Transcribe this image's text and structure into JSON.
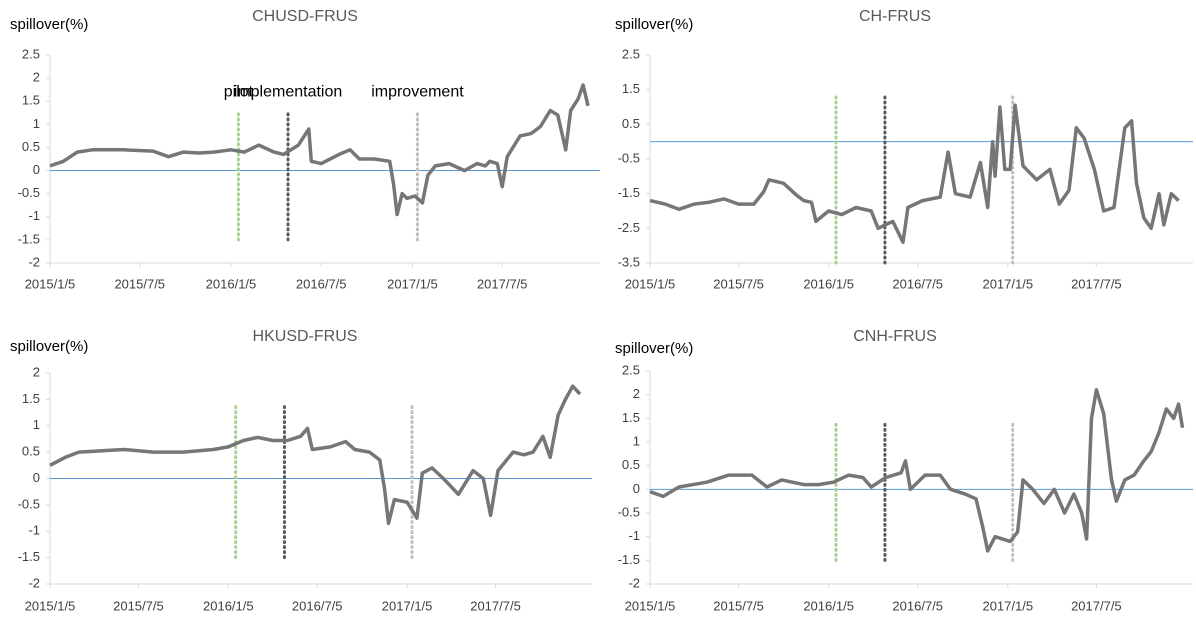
{
  "chart_data": [
    {
      "type": "line",
      "title": "CHUSD-FRUS",
      "y_label": "spillover(%)",
      "xlim": [
        "2015/1/5",
        "2017/12/29"
      ],
      "xticks": [
        "2015/1/5",
        "2015/7/5",
        "2016/1/5",
        "2016/7/5",
        "2017/1/5",
        "2017/7/5"
      ],
      "ylim": [
        -2,
        2.5
      ],
      "yticks": [
        -2,
        -1.5,
        -1,
        -0.5,
        0,
        0.5,
        1,
        1.5,
        2,
        2.5
      ],
      "baseline": 0,
      "baseline_color": "#5b9bd5",
      "events": [
        {
          "label": "pilot",
          "x": "2016/1/20",
          "color": "#a9d18e"
        },
        {
          "label": "implementation",
          "x": "2016/4/29",
          "color": "#595959"
        },
        {
          "label": "improvement",
          "x": "2017/1/15",
          "color": "#bfbfbf"
        }
      ],
      "event_ylim": [
        -1.5,
        1.3
      ],
      "x": [
        "2015/1/5",
        "2015/2/1",
        "2015/3/1",
        "2015/4/1",
        "2015/6/1",
        "2015/8/1",
        "2015/9/1",
        "2015/10/1",
        "2015/11/1",
        "2015/12/1",
        "2016/1/5",
        "2016/2/1",
        "2016/3/1",
        "2016/4/1",
        "2016/4/20",
        "2016/5/20",
        "2016/6/10",
        "2016/6/15",
        "2016/7/5",
        "2016/8/10",
        "2016/9/1",
        "2016/9/20",
        "2016/10/20",
        "2016/11/20",
        "2016/11/28",
        "2016/12/5",
        "2016/12/15",
        "2016/12/25",
        "2017/1/10",
        "2017/1/25",
        "2017/2/5",
        "2017/2/20",
        "2017/3/20",
        "2017/4/20",
        "2017/5/15",
        "2017/6/1",
        "2017/6/10",
        "2017/6/25",
        "2017/7/5",
        "2017/7/15",
        "2017/8/10",
        "2017/9/1",
        "2017/9/20",
        "2017/10/10",
        "2017/10/25",
        "2017/11/10",
        "2017/11/20",
        "2017/12/5",
        "2017/12/15",
        "2017/12/25"
      ],
      "series": [
        {
          "name": "CHUSD-FRUS",
          "color": "#767676",
          "values": [
            0.1,
            0.2,
            0.4,
            0.45,
            0.45,
            0.42,
            0.3,
            0.4,
            0.38,
            0.4,
            0.45,
            0.4,
            0.55,
            0.4,
            0.35,
            0.55,
            0.9,
            0.2,
            0.15,
            0.35,
            0.45,
            0.25,
            0.25,
            0.2,
            -0.3,
            -0.95,
            -0.5,
            -0.6,
            -0.55,
            -0.7,
            -0.1,
            0.1,
            0.15,
            0,
            0.15,
            0.1,
            0.2,
            0.15,
            -0.35,
            0.3,
            0.75,
            0.8,
            0.95,
            1.3,
            1.2,
            0.45,
            1.3,
            1.55,
            1.85,
            1.4
          ]
        }
      ]
    },
    {
      "type": "line",
      "title": "CH-FRUS",
      "y_label": "spillover(%)",
      "xlim": [
        "2015/1/5",
        "2017/12/29"
      ],
      "xticks": [
        "2015/1/5",
        "2015/7/5",
        "2016/1/5",
        "2016/7/5",
        "2017/1/5",
        "2017/7/5"
      ],
      "ylim": [
        -3.5,
        2.5
      ],
      "yticks": [
        -3.5,
        -2.5,
        -1.5,
        -0.5,
        0.5,
        1.5,
        2.5
      ],
      "baseline": 0,
      "baseline_color": "#5b9bd5",
      "events": [
        {
          "x": "2016/1/20",
          "color": "#a9d18e"
        },
        {
          "x": "2016/4/29",
          "color": "#595959"
        },
        {
          "x": "2017/1/15",
          "color": "#bfbfbf"
        }
      ],
      "event_ylim": [
        -3.5,
        1.3
      ],
      "x": [
        "2015/1/5",
        "2015/2/5",
        "2015/3/5",
        "2015/4/5",
        "2015/5/5",
        "2015/6/5",
        "2015/7/5",
        "2015/8/5",
        "2015/8/25",
        "2015/9/5",
        "2015/10/5",
        "2015/11/1",
        "2015/11/15",
        "2015/12/1",
        "2015/12/10",
        "2016/1/5",
        "2016/2/1",
        "2016/3/1",
        "2016/4/1",
        "2016/4/15",
        "2016/5/15",
        "2016/6/5",
        "2016/6/15",
        "2016/7/15",
        "2016/8/20",
        "2016/9/5",
        "2016/9/20",
        "2016/10/20",
        "2016/11/10",
        "2016/11/25",
        "2016/12/5",
        "2016/12/10",
        "2016/12/20",
        "2016/12/30",
        "2017/1/10",
        "2017/1/20",
        "2017/2/5",
        "2017/3/5",
        "2017/4/1",
        "2017/4/20",
        "2017/5/10",
        "2017/5/25",
        "2017/6/10",
        "2017/7/1",
        "2017/7/20",
        "2017/8/10",
        "2017/9/1",
        "2017/9/15",
        "2017/9/25",
        "2017/10/10",
        "2017/10/25",
        "2017/11/10",
        "2017/11/20",
        "2017/12/5",
        "2017/12/20"
      ],
      "series": [
        {
          "name": "CH-FRUS",
          "color": "#767676",
          "values": [
            -1.7,
            -1.8,
            -1.95,
            -1.8,
            -1.75,
            -1.65,
            -1.8,
            -1.8,
            -1.45,
            -1.1,
            -1.2,
            -1.55,
            -1.7,
            -1.75,
            -2.3,
            -2,
            -2.1,
            -1.9,
            -2,
            -2.5,
            -2.3,
            -2.9,
            -1.9,
            -1.7,
            -1.6,
            -0.3,
            -1.5,
            -1.6,
            -0.6,
            -1.9,
            0,
            -1,
            1,
            -0.8,
            -0.8,
            1.05,
            -0.7,
            -1.1,
            -0.8,
            -1.8,
            -1.4,
            0.4,
            0.1,
            -0.8,
            -2,
            -1.9,
            0.4,
            0.6,
            -1.2,
            -2.2,
            -2.5,
            -1.5,
            -2.4,
            -1.5,
            -1.7
          ]
        }
      ]
    },
    {
      "type": "line",
      "title": "HKUSD-FRUS",
      "y_label": "spillover(%)",
      "xlim": [
        "2015/1/5",
        "2017/12/29"
      ],
      "xticks": [
        "2015/1/5",
        "2015/7/5",
        "2016/1/5",
        "2016/7/5",
        "2017/1/5",
        "2017/7/5"
      ],
      "ylim": [
        -2,
        2
      ],
      "yticks": [
        -2,
        -1.5,
        -1,
        -0.5,
        0,
        0.5,
        1,
        1.5,
        2
      ],
      "baseline": 0,
      "baseline_color": "#5b9bd5",
      "events": [
        {
          "x": "2016/1/20",
          "color": "#a9d18e"
        },
        {
          "x": "2016/4/29",
          "color": "#595959"
        },
        {
          "x": "2017/1/15",
          "color": "#bfbfbf"
        }
      ],
      "event_ylim": [
        -1.5,
        1.4
      ],
      "x": [
        "2015/1/5",
        "2015/2/5",
        "2015/3/5",
        "2015/6/5",
        "2015/8/5",
        "2015/10/5",
        "2015/12/5",
        "2016/1/5",
        "2016/2/5",
        "2016/3/5",
        "2016/4/5",
        "2016/5/5",
        "2016/6/1",
        "2016/6/15",
        "2016/6/25",
        "2016/8/1",
        "2016/9/1",
        "2016/9/20",
        "2016/10/20",
        "2016/11/10",
        "2016/11/20",
        "2016/11/28",
        "2016/12/10",
        "2017/1/5",
        "2017/1/25",
        "2017/2/5",
        "2017/2/25",
        "2017/3/20",
        "2017/4/20",
        "2017/5/20",
        "2017/6/10",
        "2017/6/25",
        "2017/7/10",
        "2017/8/10",
        "2017/9/1",
        "2017/9/20",
        "2017/10/10",
        "2017/10/25",
        "2017/11/10",
        "2017/11/25",
        "2017/12/10",
        "2017/12/25"
      ],
      "series": [
        {
          "name": "HKUSD-FRUS",
          "color": "#767676",
          "values": [
            0.25,
            0.4,
            0.5,
            0.55,
            0.5,
            0.5,
            0.55,
            0.6,
            0.72,
            0.78,
            0.72,
            0.72,
            0.8,
            0.95,
            0.55,
            0.6,
            0.7,
            0.55,
            0.5,
            0.35,
            -0.2,
            -0.85,
            -0.4,
            -0.45,
            -0.75,
            0.1,
            0.2,
            0,
            -0.3,
            0.15,
            0,
            -0.7,
            0.15,
            0.5,
            0.45,
            0.5,
            0.8,
            0.4,
            1.2,
            1.5,
            1.75,
            1.6
          ]
        }
      ]
    },
    {
      "type": "line",
      "title": "CNH-FRUS",
      "y_label": "spillover(%)",
      "xlim": [
        "2015/1/5",
        "2017/12/29"
      ],
      "xticks": [
        "2015/1/5",
        "2015/7/5",
        "2016/1/5",
        "2016/7/5",
        "2017/1/5",
        "2017/7/5"
      ],
      "ylim": [
        -2,
        2.5
      ],
      "yticks": [
        -2,
        -1.5,
        -1,
        -0.5,
        0,
        0.5,
        1,
        1.5,
        2,
        2.5
      ],
      "baseline": 0,
      "baseline_color": "#5b9bd5",
      "events": [
        {
          "x": "2016/1/20",
          "color": "#a9d18e"
        },
        {
          "x": "2016/4/29",
          "color": "#595959"
        },
        {
          "x": "2017/1/15",
          "color": "#bfbfbf"
        }
      ],
      "event_ylim": [
        -1.5,
        1.4
      ],
      "x": [
        "2015/1/5",
        "2015/2/1",
        "2015/3/5",
        "2015/5/1",
        "2015/6/15",
        "2015/8/1",
        "2015/9/1",
        "2015/10/1",
        "2015/11/15",
        "2015/12/15",
        "2016/1/15",
        "2016/2/15",
        "2016/3/15",
        "2016/4/1",
        "2016/5/1",
        "2016/6/1",
        "2016/6/10",
        "2016/6/20",
        "2016/7/20",
        "2016/8/20",
        "2016/9/10",
        "2016/10/10",
        "2016/11/1",
        "2016/11/15",
        "2016/11/25",
        "2016/12/10",
        "2017/1/10",
        "2017/1/25",
        "2017/2/5",
        "2017/2/25",
        "2017/3/20",
        "2017/4/10",
        "2017/5/1",
        "2017/5/20",
        "2017/6/5",
        "2017/6/15",
        "2017/6/25",
        "2017/7/5",
        "2017/7/20",
        "2017/8/5",
        "2017/8/15",
        "2017/9/1",
        "2017/9/20",
        "2017/10/10",
        "2017/10/25",
        "2017/11/10",
        "2017/11/25",
        "2017/12/10",
        "2017/12/20",
        "2017/12/28"
      ],
      "series": [
        {
          "name": "CNH-FRUS",
          "color": "#767676",
          "values": [
            -0.05,
            -0.15,
            0.05,
            0.15,
            0.3,
            0.3,
            0.05,
            0.2,
            0.1,
            0.1,
            0.15,
            0.3,
            0.25,
            0.05,
            0.25,
            0.35,
            0.6,
            0,
            0.3,
            0.3,
            0,
            -0.1,
            -0.2,
            -0.8,
            -1.3,
            -1,
            -1.1,
            -0.9,
            0.2,
            0,
            -0.3,
            0,
            -0.5,
            -0.1,
            -0.5,
            -1.05,
            1.5,
            2.1,
            1.6,
            0.2,
            -0.25,
            0.2,
            0.3,
            0.6,
            0.8,
            1.2,
            1.7,
            1.5,
            1.8,
            1.3
          ]
        }
      ]
    }
  ]
}
